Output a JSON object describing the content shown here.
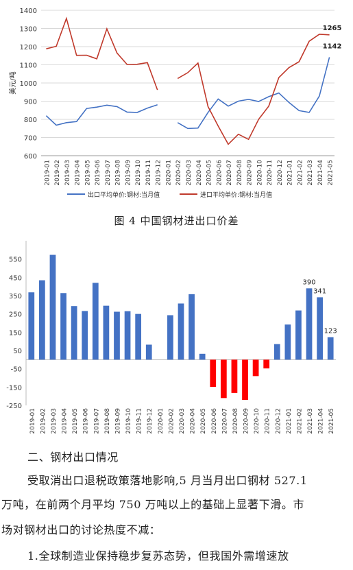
{
  "chart_data": [
    {
      "type": "line",
      "ylabel": "美元/吨",
      "ylim": [
        600,
        1400
      ],
      "yticks": [
        600,
        700,
        800,
        900,
        1000,
        1100,
        1200,
        1300,
        1400
      ],
      "grid": true,
      "legend_position": "bottom",
      "categories": [
        "2019-01",
        "2019-02",
        "2019-03",
        "2019-04",
        "2019-05",
        "2019-06",
        "2019-07",
        "2019-08",
        "2019-09",
        "2019-10",
        "2019-11",
        "2019-12",
        "2020-01",
        "2020-02",
        "2020-03",
        "2020-04",
        "2020-05",
        "2020-06",
        "2020-07",
        "2020-08",
        "2020-09",
        "2020-10",
        "2020-11",
        "2020-12",
        "2021-01",
        "2021-02",
        "2021-03",
        "2021-04",
        "2021-05"
      ],
      "series": [
        {
          "name": "出口平均单价:钢材:当月值",
          "color": "#4472c4",
          "values": [
            820,
            768,
            782,
            788,
            860,
            867,
            878,
            870,
            840,
            838,
            862,
            880,
            null,
            782,
            750,
            752,
            838,
            912,
            873,
            900,
            910,
            898,
            925,
            945,
            893,
            848,
            838,
            928,
            1142
          ]
        },
        {
          "name": "进口平均单价:钢材:当月值",
          "color": "#c0392b",
          "values": [
            1188,
            1202,
            1355,
            1152,
            1153,
            1133,
            1298,
            1165,
            1102,
            1103,
            1112,
            962,
            null,
            1025,
            1057,
            1110,
            870,
            763,
            663,
            718,
            690,
            800,
            873,
            1030,
            1085,
            1117,
            1230,
            1268,
            1265
          ]
        }
      ],
      "annotations": [
        {
          "category": "2021-05",
          "value": "1265"
        },
        {
          "category": "2021-05",
          "value": "1142"
        }
      ]
    },
    {
      "type": "bar",
      "ylim": [
        -250,
        650
      ],
      "yticks": [
        -250,
        -150,
        -50,
        50,
        150,
        250,
        350,
        450,
        550
      ],
      "grid": false,
      "categories": [
        "2019-01",
        "2019-02",
        "2019-03",
        "2019-04",
        "2019-05",
        "2019-06",
        "2019-07",
        "2019-08",
        "2019-09",
        "2019-10",
        "2019-11",
        "2019-12",
        "2020-01",
        "2020-02",
        "2020-03",
        "2020-04",
        "2020-05",
        "2020-06",
        "2020-07",
        "2020-08",
        "2020-09",
        "2020-10",
        "2020-11",
        "2020-12",
        "2021-01",
        "2021-02",
        "2021-03",
        "2021-04",
        "2021-05"
      ],
      "values": [
        368,
        434,
        573,
        364,
        293,
        266,
        420,
        295,
        262,
        265,
        250,
        82,
        null,
        243,
        307,
        358,
        32,
        -149,
        -210,
        -182,
        -220,
        -90,
        -48,
        85,
        192,
        269,
        390,
        341,
        123
      ],
      "positive_color": "#4472c4",
      "negative_color": "#ff0000",
      "data_labels": {
        "2021-03": "390",
        "2021-04": "341",
        "2021-05": "123"
      }
    }
  ],
  "caption": "图 4   中国钢材进出口价差",
  "text": {
    "section_heading": "二、钢材出口情况",
    "line1": "受取消出口退税政策落地影响,5 月当月出口钢材 527.1",
    "line2": "万吨，在前两个月平均 750 万吨以上的基础上显著下滑。市",
    "line3": "场对钢材出口的讨论热度不减：",
    "line4": "1.全球制造业保持稳步复苏态势，但我国外需增速放"
  }
}
